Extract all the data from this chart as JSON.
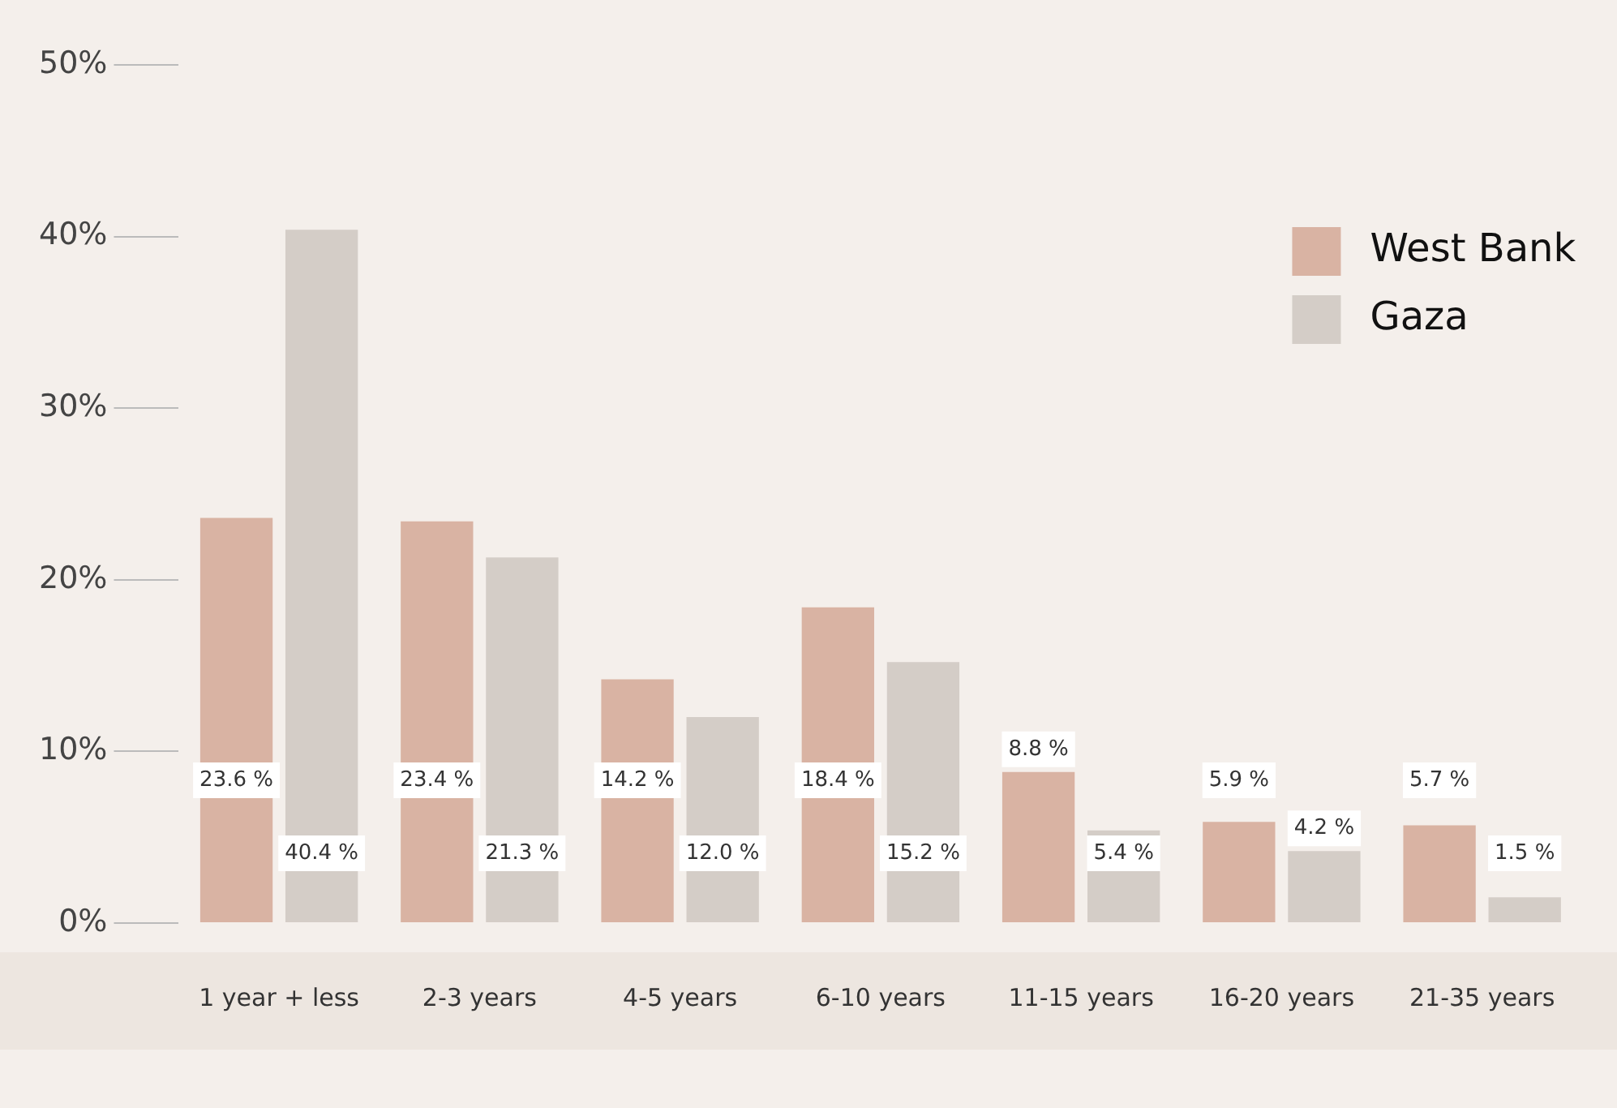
{
  "chart_data": {
    "type": "bar",
    "categories": [
      "1 year + less",
      "2-3 years",
      "4-5 years",
      "6-10 years",
      "11-15 years",
      "16-20 years",
      "21-35 years"
    ],
    "series": [
      {
        "name": "West Bank",
        "color": "#d9b3a3",
        "values": [
          23.6,
          23.4,
          14.2,
          18.4,
          8.8,
          5.9,
          5.7
        ],
        "value_labels": [
          "23.6 %",
          "23.4 %",
          "14.2 %",
          "18.4 %",
          "8.8 %",
          "5.9 %",
          "5.7 %"
        ]
      },
      {
        "name": "Gaza",
        "color": "#d4cdc7",
        "values": [
          40.4,
          21.3,
          12.0,
          15.2,
          5.4,
          4.2,
          1.5
        ],
        "value_labels": [
          "40.4 %",
          "21.3 %",
          "12.0 %",
          "15.2 %",
          "5.4 %",
          "4.2 %",
          "1.5 %"
        ]
      }
    ],
    "ylim": [
      0,
      50
    ],
    "yticks": [
      {
        "value": 0,
        "label": "0%"
      },
      {
        "value": 10,
        "label": "10%"
      },
      {
        "value": 20,
        "label": "20%"
      },
      {
        "value": 30,
        "label": "30%"
      },
      {
        "value": 40,
        "label": "40%"
      },
      {
        "value": 50,
        "label": "50%"
      }
    ],
    "grid": false,
    "legend": "top right"
  }
}
